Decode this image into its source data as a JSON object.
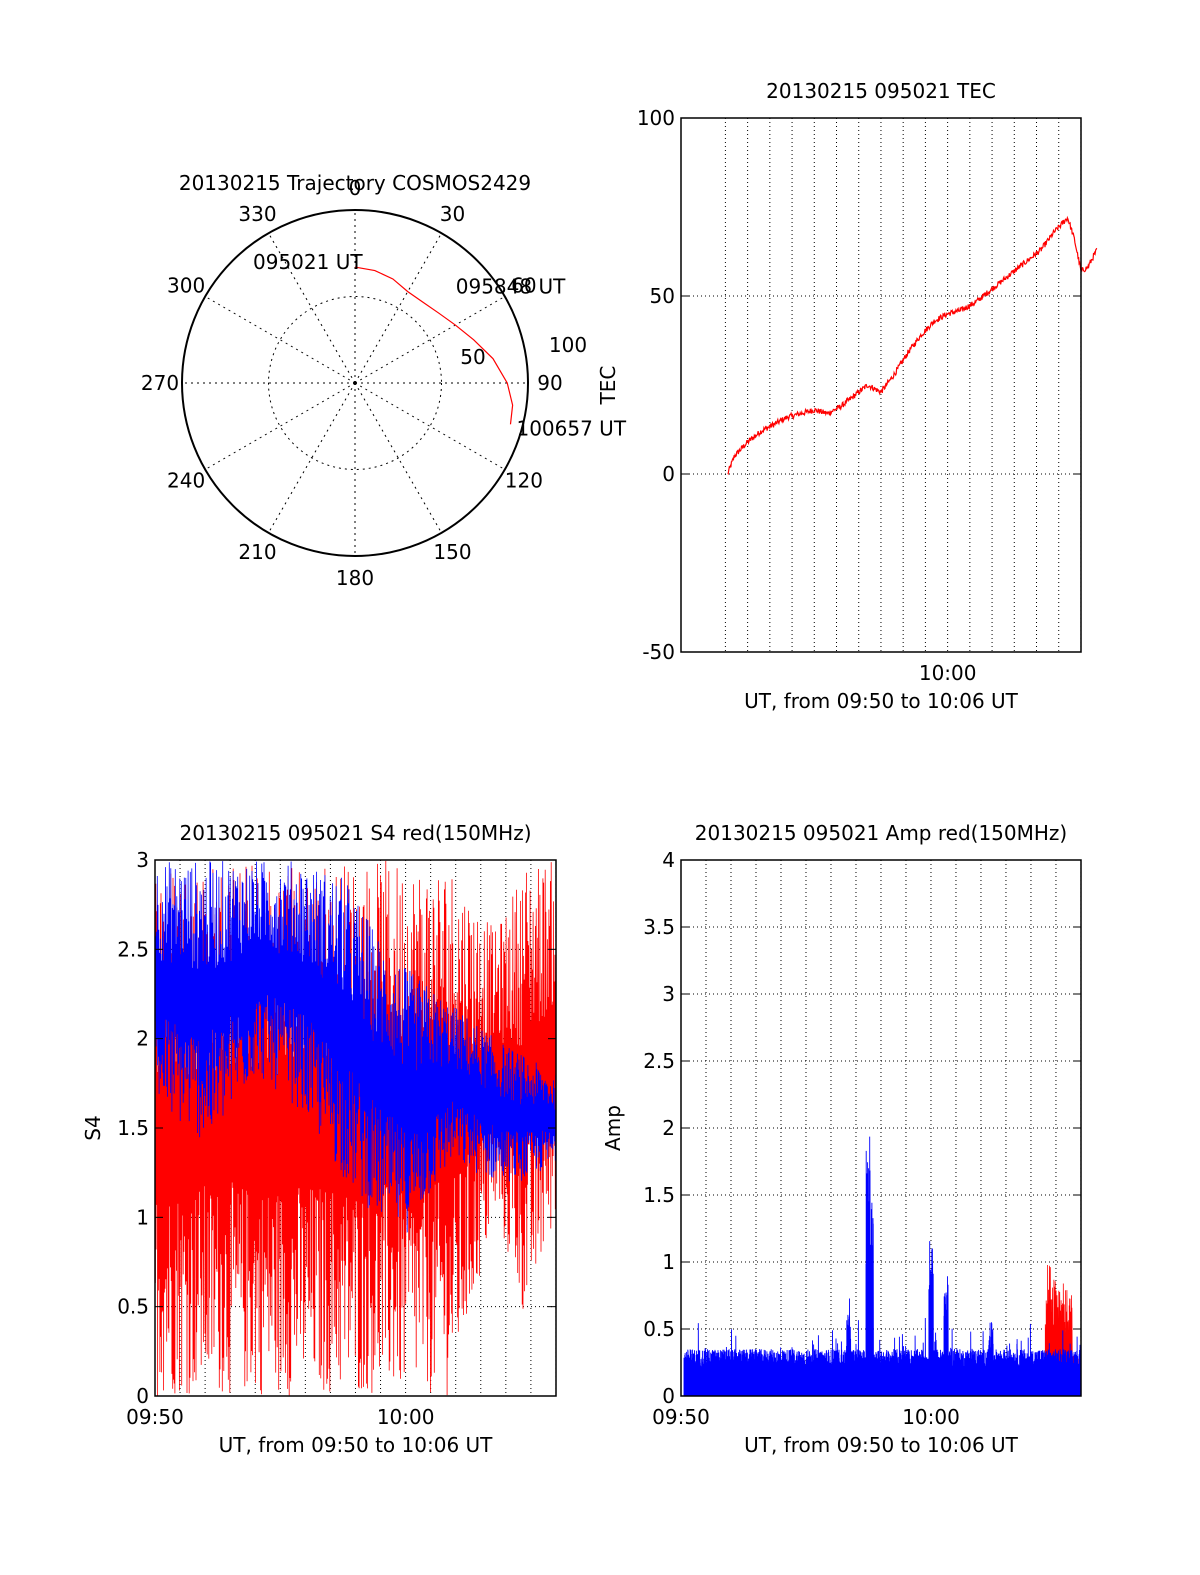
{
  "colors": {
    "red": "#ff0000",
    "blue": "#0000ff",
    "axis": "#000000"
  },
  "chart_data": [
    {
      "id": "trajectory",
      "type": "polar",
      "title": "20130215 Trajectory COSMOS2429",
      "angle_labels": [
        "0",
        "30",
        "60",
        "90",
        "120",
        "150",
        "180",
        "210",
        "240",
        "270",
        "300",
        "330"
      ],
      "radius_labels": [
        "50",
        "100"
      ],
      "rlim": [
        0,
        100
      ],
      "grid": true,
      "series": [
        {
          "color": "red",
          "points": [
            {
              "az": 0,
              "r": 67
            },
            {
              "az": 10,
              "r": 66
            },
            {
              "az": 20,
              "r": 64
            },
            {
              "az": 30,
              "r": 61
            },
            {
              "az": 40,
              "r": 61
            },
            {
              "az": 50,
              "r": 63
            },
            {
              "az": 60,
              "r": 67
            },
            {
              "az": 70,
              "r": 73
            },
            {
              "az": 80,
              "r": 81
            },
            {
              "az": 90,
              "r": 88
            },
            {
              "az": 98,
              "r": 92
            },
            {
              "az": 104.9,
              "r": 93
            }
          ]
        }
      ],
      "annotations": [
        {
          "text": "095021 UT",
          "az": 0,
          "r": 67
        },
        {
          "text": "095848 UT",
          "az": 30,
          "r": 61
        },
        {
          "text": "100657 UT",
          "az": 104.9,
          "r": 93
        }
      ]
    },
    {
      "id": "tec",
      "type": "line",
      "title": "20130215 095021 TEC",
      "xlabel": "UT, from 09:50 to 10:06 UT",
      "ylabel": "TEC",
      "x_tick_labels": [
        {
          "value": 10.0,
          "label": "10:00"
        }
      ],
      "xlim": [
        9.8,
        10.1
      ],
      "ylim": [
        -50,
        100
      ],
      "y_ticks": [
        -50,
        0,
        50,
        100
      ],
      "grid": true,
      "series": [
        {
          "color": "red",
          "x": [
            9.835,
            9.84,
            9.85,
            9.86,
            9.87,
            9.88,
            9.89,
            9.9,
            9.91,
            9.92,
            9.93,
            9.94,
            9.95,
            9.96,
            9.97,
            9.98,
            9.99,
            10.0,
            10.01,
            10.02,
            10.03,
            10.04,
            10.05,
            10.06,
            10.07,
            10.08,
            10.09,
            10.095,
            10.1,
            10.105,
            10.112
          ],
          "y": [
            0,
            5,
            9,
            12,
            14,
            16,
            17,
            18,
            17,
            19,
            22,
            25,
            23,
            28,
            34,
            39,
            43,
            45,
            46,
            48,
            51,
            54,
            57,
            60,
            63,
            68,
            72,
            66,
            57,
            58,
            63
          ]
        }
      ]
    },
    {
      "id": "s4",
      "type": "line",
      "title": "20130215 095021 S4 red(150MHz)",
      "xlabel": "UT, from 09:50 to 10:06 UT",
      "ylabel": "S4",
      "x_tick_labels": [
        {
          "value": 9.8333,
          "label": "09:50"
        },
        {
          "value": 10.0,
          "label": "10:00"
        }
      ],
      "xlim": [
        9.8333,
        10.1
      ],
      "ylim": [
        0,
        3
      ],
      "y_ticks": [
        0,
        0.5,
        1,
        1.5,
        2,
        2.5,
        3
      ],
      "y_tick_labels": [
        "0",
        "0.5",
        "1",
        "1.5",
        "2",
        "2.5",
        "3"
      ],
      "grid": true,
      "series": [
        {
          "color": "red",
          "noise": "high",
          "envelope_x": [
            9.8333,
            9.9,
            9.97,
            10.03,
            10.06,
            10.08,
            10.1
          ],
          "envelope_high": [
            3,
            3,
            3,
            3,
            2.6,
            3,
            3
          ],
          "envelope_low": [
            0,
            0,
            0,
            0,
            1.0,
            0.4,
            1.0
          ]
        },
        {
          "color": "blue",
          "noise": "high",
          "envelope_x": [
            9.8333,
            9.87,
            9.9,
            9.93,
            9.96,
            9.98,
            10.0,
            10.03,
            10.06,
            10.08,
            10.1
          ],
          "envelope_high": [
            3,
            3,
            3,
            3,
            2.9,
            2.6,
            2.4,
            2.2,
            2.0,
            1.9,
            1.8
          ],
          "envelope_low": [
            1.6,
            1.4,
            1.8,
            1.6,
            1.2,
            1.0,
            0.9,
            1.3,
            1.2,
            1.2,
            1.3
          ]
        }
      ]
    },
    {
      "id": "amp",
      "type": "line",
      "title": "20130215 095021 Amp red(150MHz)",
      "xlabel": "UT, from 09:50 to 10:06 UT",
      "ylabel": "Amp",
      "x_tick_labels": [
        {
          "value": 9.8333,
          "label": "09:50"
        },
        {
          "value": 10.0,
          "label": "10:00"
        }
      ],
      "xlim": [
        9.8333,
        10.1
      ],
      "ylim": [
        0,
        4
      ],
      "y_ticks": [
        0,
        0.5,
        1,
        1.5,
        2,
        2.5,
        3,
        3.5,
        4
      ],
      "y_tick_labels": [
        "0",
        "0.5",
        "1",
        "1.5",
        "2",
        "2.5",
        "3",
        "3.5",
        "4"
      ],
      "grid": true,
      "series": [
        {
          "color": "red",
          "noise": "spikes",
          "spikes": [
            {
              "x": 10.08,
              "y": 1.0
            },
            {
              "x": 10.085,
              "y": 0.9
            },
            {
              "x": 10.09,
              "y": 0.8
            }
          ]
        },
        {
          "color": "blue",
          "noise": "band",
          "baseline_low": 0.05,
          "baseline_high": 0.35,
          "spikes": [
            {
              "x": 9.958,
              "y": 2.1
            },
            {
              "x": 9.96,
              "y": 1.8
            },
            {
              "x": 10.0,
              "y": 1.25
            },
            {
              "x": 10.01,
              "y": 1.05
            },
            {
              "x": 9.945,
              "y": 0.75
            },
            {
              "x": 10.04,
              "y": 0.6
            }
          ]
        }
      ]
    }
  ]
}
